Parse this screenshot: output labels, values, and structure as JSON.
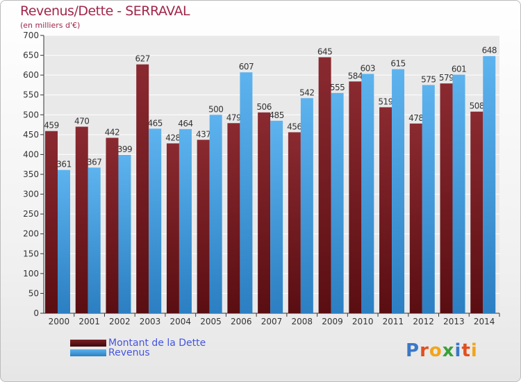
{
  "title": "Revenus/Dette - SERRAVAL",
  "subtitle": "(en milliers d'€)",
  "logo": "Proxiti",
  "colors": {
    "dette": "#7a1f24",
    "dette_dark": "#4a0d10",
    "revenus": "#5aafea",
    "revenus_dark": "#2f7fc0",
    "title": "#a0264a",
    "legend_text": "#4455dd"
  },
  "chart_data": {
    "type": "bar",
    "categories": [
      "2000",
      "2001",
      "2002",
      "2003",
      "2004",
      "2005",
      "2006",
      "2007",
      "2008",
      "2009",
      "2010",
      "2011",
      "2012",
      "2013",
      "2014"
    ],
    "series": [
      {
        "name": "Montant de la Dette",
        "values": [
          459,
          470,
          442,
          627,
          428,
          437,
          479,
          506,
          456,
          645,
          584,
          519,
          478,
          579,
          508
        ]
      },
      {
        "name": "Revenus",
        "values": [
          361,
          367,
          399,
          465,
          464,
          500,
          607,
          485,
          542,
          555,
          603,
          615,
          575,
          601,
          648
        ]
      }
    ],
    "yticks": [
      0,
      50,
      100,
      150,
      200,
      250,
      300,
      350,
      400,
      450,
      500,
      550,
      600,
      650,
      700
    ],
    "ylim": [
      0,
      700
    ],
    "grid": true,
    "legend": "bottom-left",
    "data_labels": true
  }
}
